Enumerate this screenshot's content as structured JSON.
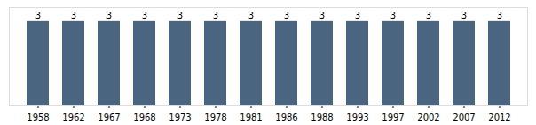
{
  "chart_data": {
    "type": "bar",
    "categories": [
      "1958",
      "1962",
      "1967",
      "1968",
      "1973",
      "1978",
      "1981",
      "1986",
      "1988",
      "1993",
      "1997",
      "2002",
      "2007",
      "2012"
    ],
    "values": [
      3,
      3,
      3,
      3,
      3,
      3,
      3,
      3,
      3,
      3,
      3,
      3,
      3,
      3
    ],
    "color": "#4A6580",
    "ylim": [
      0,
      3.5
    ],
    "data_labels": true,
    "tick_labels": "x",
    "grid": false
  }
}
